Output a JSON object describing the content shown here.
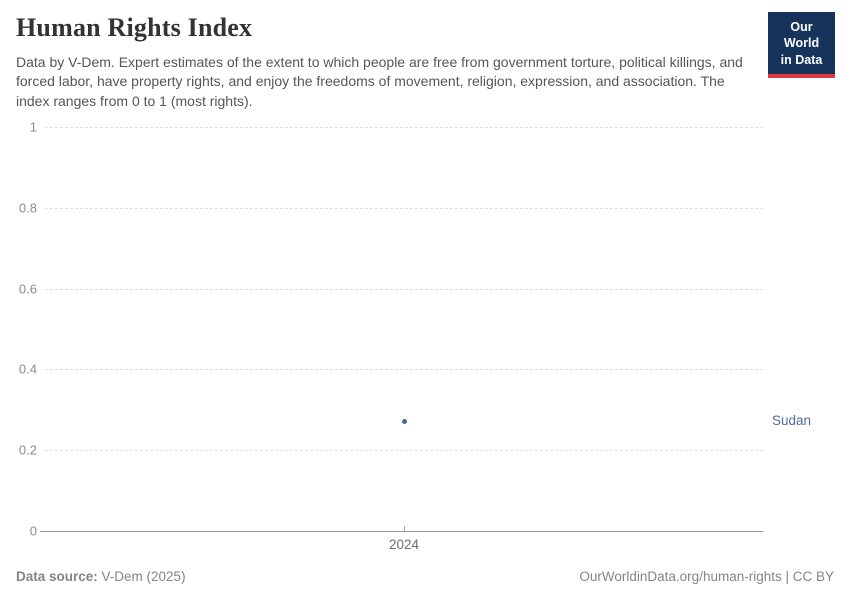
{
  "header": {
    "title": "Human Rights Index",
    "subtitle": "Data by V-Dem. Expert estimates of the extent to which people are free from government torture, political killings, and forced labor, have property rights, and enjoy the freedoms of movement, religion, expression, and association. The index ranges from 0 to 1 (most rights).",
    "logo": {
      "line1": "Our World",
      "line2": "in Data"
    }
  },
  "chart_data": {
    "type": "scatter",
    "title": "Human Rights Index",
    "xlabel": "",
    "ylabel": "",
    "ylim": [
      0,
      1
    ],
    "yticks": [
      0,
      0.2,
      0.4,
      0.6,
      0.8,
      1
    ],
    "ytick_labels": [
      "0",
      "0.2",
      "0.4",
      "0.6",
      "0.8",
      "1"
    ],
    "xlim": [
      2023.5,
      2024.5
    ],
    "xticks": [
      2024
    ],
    "xtick_labels": [
      "2024"
    ],
    "grid": "horizontal-dashed",
    "legend_position": "right-of-point",
    "series": [
      {
        "name": "Sudan",
        "x": [
          2024
        ],
        "y": [
          0.27
        ],
        "color": "#4c6a9c"
      }
    ]
  },
  "footer": {
    "source_label": "Data source:",
    "source_value": " V-Dem (2025)",
    "credit": "OurWorldinData.org/human-rights | CC BY"
  },
  "colors": {
    "accent": "#4c6a9c",
    "logo_bg": "#15335b",
    "logo_red": "#dc3a3c",
    "grid": "#e0e0e0",
    "axis": "#9a9a9a",
    "y_tick_text": "#8c8c8c",
    "x_tick_text": "#6d6d6d",
    "subtitle_text": "#565656",
    "footer_text": "#858585"
  }
}
